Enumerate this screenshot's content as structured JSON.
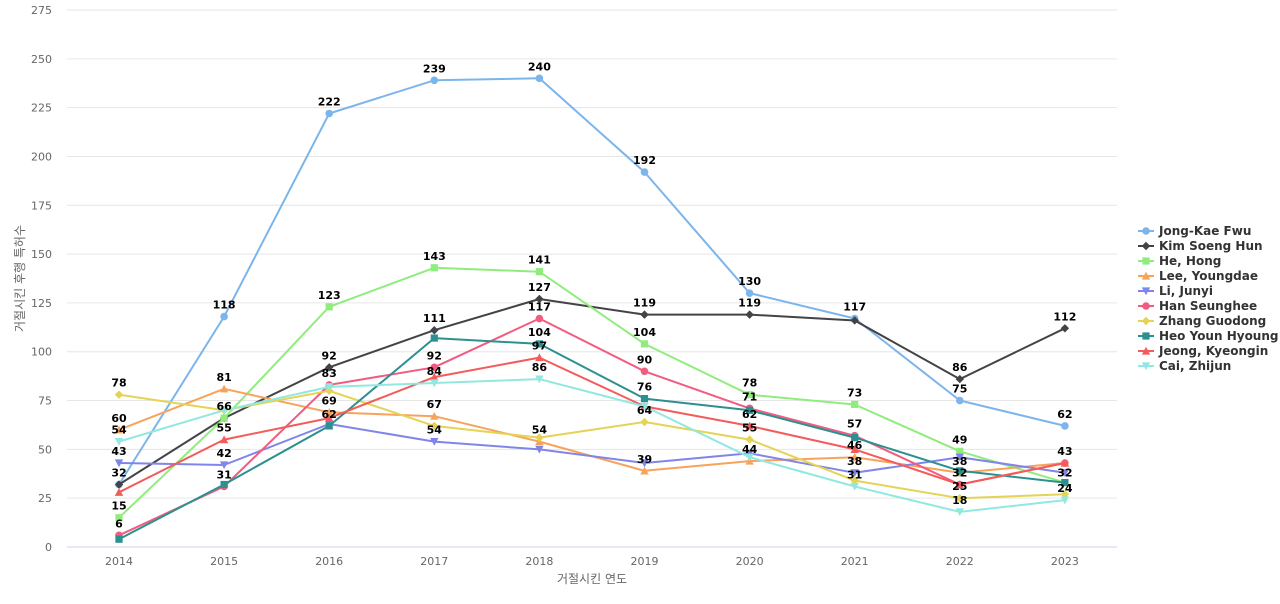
{
  "chart_data": {
    "type": "line",
    "title": "",
    "xlabel": "거절시킨 연도",
    "ylabel": "거절시킨 후행 특허수",
    "categories": [
      "2014",
      "2015",
      "2016",
      "2017",
      "2018",
      "2019",
      "2020",
      "2021",
      "2022",
      "2023"
    ],
    "ylim": [
      0,
      275
    ],
    "yticks": [
      0,
      25,
      50,
      75,
      100,
      125,
      150,
      175,
      200,
      225,
      250,
      275
    ],
    "grid": true,
    "legend_position": "right",
    "series": [
      {
        "name": "Jong-Kae Fwu",
        "color": "#7cb5ec",
        "marker": "circle",
        "values": [
          32,
          118,
          222,
          239,
          240,
          192,
          130,
          117,
          75,
          62
        ]
      },
      {
        "name": "Kim Soeng Hun",
        "color": "#434348",
        "marker": "diamond",
        "values": [
          32,
          66,
          92,
          111,
          127,
          119,
          119,
          116,
          86,
          112
        ]
      },
      {
        "name": "He, Hong",
        "color": "#90ed7d",
        "marker": "square",
        "values": [
          15,
          66,
          123,
          143,
          141,
          104,
          78,
          73,
          49,
          33
        ]
      },
      {
        "name": "Lee, Youngdae",
        "color": "#f7a35c",
        "marker": "triangle",
        "values": [
          60,
          81,
          69,
          67,
          54,
          39,
          44,
          46,
          38,
          43
        ]
      },
      {
        "name": "Li, Junyi",
        "color": "#8085e9",
        "marker": "triangle-down",
        "values": [
          43,
          42,
          63,
          54,
          50,
          43,
          48,
          38,
          46,
          38
        ]
      },
      {
        "name": "Han Seunghee",
        "color": "#f15c80",
        "marker": "circle",
        "values": [
          6,
          31,
          83,
          92,
          117,
          90,
          71,
          57,
          32,
          43
        ]
      },
      {
        "name": "Zhang Guodong",
        "color": "#e4d354",
        "marker": "diamond",
        "values": [
          78,
          70,
          80,
          62,
          56,
          64,
          55,
          34,
          25,
          27
        ]
      },
      {
        "name": "Heo Youn Hyoung",
        "color": "#2b908f",
        "marker": "square",
        "values": [
          4,
          32,
          62,
          107,
          104,
          76,
          70,
          56,
          39,
          33
        ]
      },
      {
        "name": "Jeong, Kyeongin",
        "color": "#f45b5b",
        "marker": "triangle",
        "values": [
          28,
          55,
          66,
          87,
          97,
          72,
          62,
          50,
          32,
          43
        ]
      },
      {
        "name": "Cai, Zhijun",
        "color": "#91e8e1",
        "marker": "triangle-down",
        "values": [
          54,
          70,
          82,
          84,
          86,
          72,
          46,
          31,
          18,
          24
        ]
      }
    ],
    "data_labels": {
      "2014": [
        "78",
        "60",
        "54",
        "43",
        "32",
        "15",
        "6"
      ],
      "2015": [
        "118",
        "81",
        "66",
        "55",
        "42",
        "31"
      ],
      "2016": [
        "222",
        "123",
        "92",
        "83",
        "69",
        "62"
      ],
      "2017": [
        "239",
        "143",
        "111",
        "92",
        "84",
        "67",
        "54"
      ],
      "2018": [
        "240",
        "141",
        "127",
        "117",
        "104",
        "97",
        "86",
        "54"
      ],
      "2019": [
        "192",
        "119",
        "104",
        "90",
        "76",
        "64",
        "39"
      ],
      "2020": [
        "130",
        "119",
        "78",
        "71",
        "62",
        "55",
        "44"
      ],
      "2021": [
        "117",
        "73",
        "57",
        "46",
        "38",
        "31"
      ],
      "2022": [
        "86",
        "75",
        "49",
        "38",
        "32",
        "25",
        "18"
      ],
      "2023": [
        "112",
        "62",
        "43",
        "32",
        "24"
      ]
    }
  }
}
